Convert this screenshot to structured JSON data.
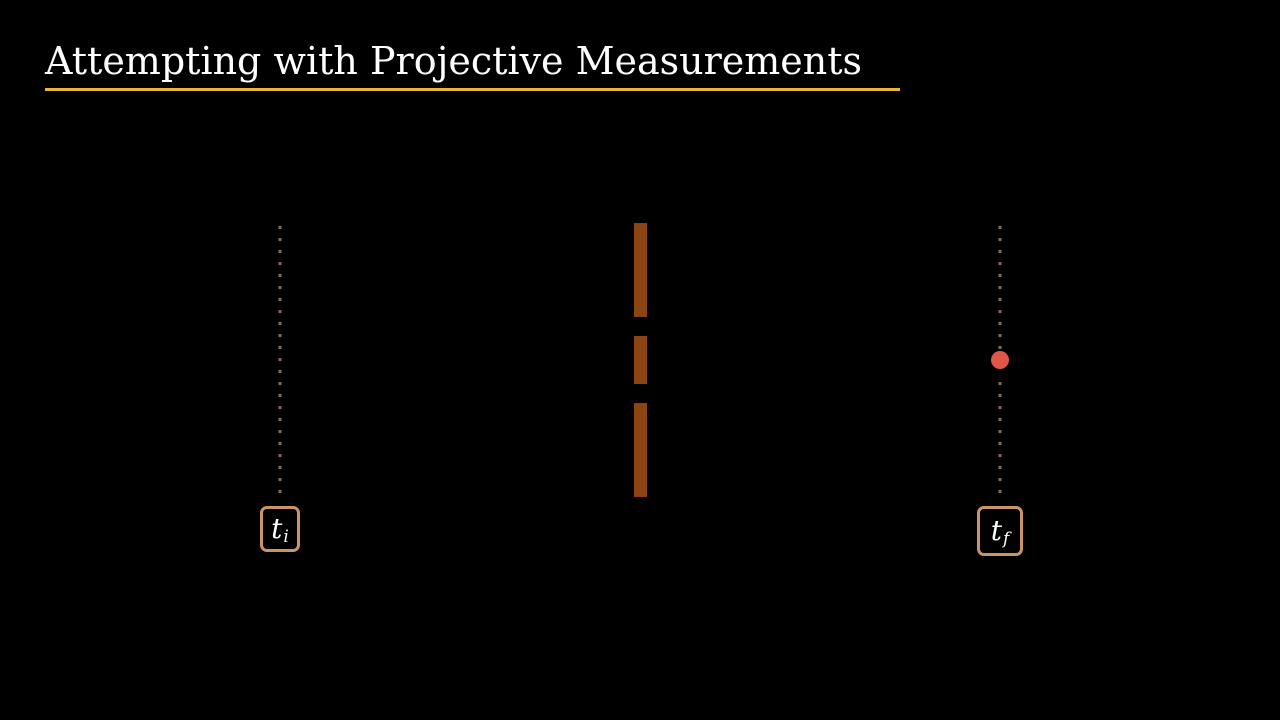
{
  "title": "Attempting with Projective Measurements",
  "colors": {
    "background": "#000000",
    "title_text": "#ffffff",
    "underline": "#e6b83a",
    "timeline_dots": "#8a6a62",
    "barrier": "#8b4513",
    "particle": "#e0574a",
    "label_border": "#c99560"
  },
  "timelines": [
    {
      "id": "initial",
      "label_base": "t",
      "label_sub": "i"
    },
    {
      "id": "final",
      "label_base": "t",
      "label_sub": "f"
    }
  ],
  "barrier_segments": 3,
  "particle": {
    "shape": "dot",
    "on_timeline": "final"
  }
}
